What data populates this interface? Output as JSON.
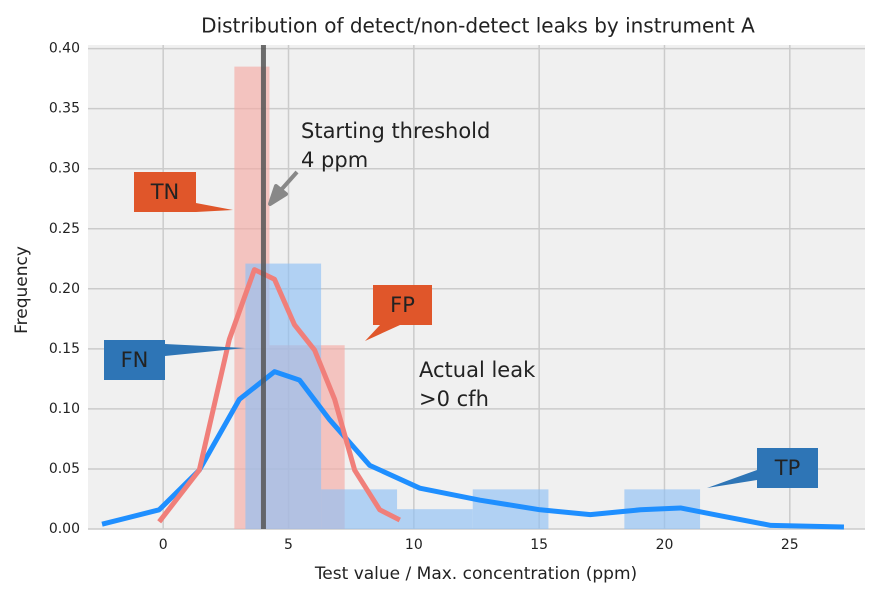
{
  "chart_data": {
    "type": "histogram",
    "title": "Distribution of detect/non-detect leaks by instrument A",
    "xlabel": "Test value / Max. concentration (ppm)",
    "ylabel": "Frequency",
    "xlim": [
      -3,
      28
    ],
    "ylim": [
      0,
      0.403
    ],
    "xticks": [
      0,
      5,
      10,
      15,
      20,
      25
    ],
    "yticks": [
      {
        "value": 0,
        "label": "0.00"
      },
      {
        "value": 0.05,
        "label": "0.05"
      },
      {
        "value": 0.1,
        "label": "0.10"
      },
      {
        "value": 0.15,
        "label": "0.15"
      },
      {
        "value": 0.2,
        "label": "0.20"
      },
      {
        "value": 0.25,
        "label": "0.25"
      },
      {
        "value": 0.3,
        "label": "0.30"
      },
      {
        "value": 0.35,
        "label": "0.35"
      },
      {
        "value": 0.4,
        "label": "0.40"
      }
    ],
    "grid": true,
    "histograms": [
      {
        "color": "#f4aaa4",
        "bins": [
          2.84,
          4.24,
          7.24
        ],
        "values": [
          0.385,
          0.153
        ]
      },
      {
        "color": "#8fc0f5",
        "bins": [
          3.28,
          6.3,
          9.33,
          12.35,
          15.37,
          18.4,
          21.42
        ],
        "values": [
          0.221,
          0.033,
          0.0165,
          0.033,
          0,
          0.033
        ]
      }
    ],
    "kde": [
      {
        "color": "#1f8fff",
        "x": [
          -2.44,
          -0.16,
          1.44,
          3.04,
          4.44,
          5.44,
          6.64,
          8.24,
          10.24,
          12.64,
          15.04,
          17.04,
          19.04,
          20.64,
          22.24,
          24.24,
          27.16
        ],
        "values": [
          0.004,
          0.016,
          0.049,
          0.108,
          0.131,
          0.124,
          0.091,
          0.053,
          0.034,
          0.024,
          0.016,
          0.012,
          0.016,
          0.0175,
          0.011,
          0.003,
          0.0017
        ]
      },
      {
        "color": "#f07f7a",
        "x": [
          -0.16,
          1.44,
          2.64,
          3.64,
          4.44,
          5.24,
          6.04,
          6.84,
          7.64,
          8.64,
          9.44
        ],
        "values": [
          0.006,
          0.049,
          0.158,
          0.216,
          0.208,
          0.17,
          0.149,
          0.108,
          0.049,
          0.016,
          0.0075
        ]
      }
    ],
    "vline": 4,
    "vline_color": "#555555",
    "annotations": [
      {
        "text": [
          "Starting threshold",
          "4 ppm"
        ],
        "color": "#222222"
      },
      {
        "text": [
          "Actual leak",
          ">0 cfh"
        ],
        "color": "#6a9ee8"
      }
    ],
    "callouts": [
      {
        "text": "TN",
        "color": "#e0562a"
      },
      {
        "text": "FP",
        "color": "#e0562a"
      },
      {
        "text": "FN",
        "color": "#2e75b6"
      },
      {
        "text": "TP",
        "color": "#2e75b6"
      }
    ]
  }
}
